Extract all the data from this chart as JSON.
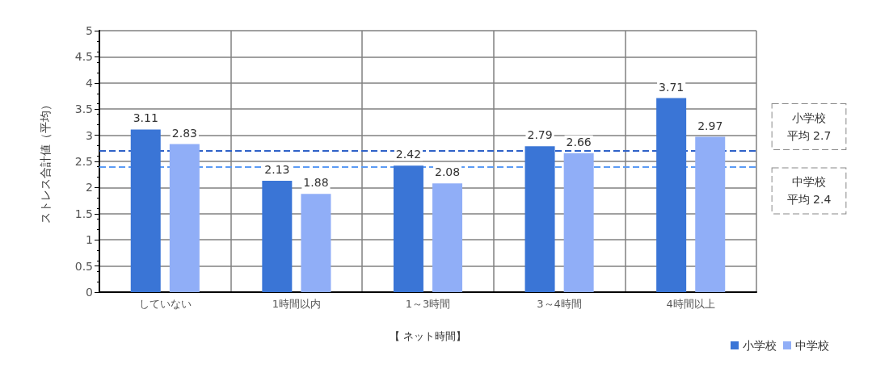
{
  "chart_data": {
    "type": "bar",
    "xlabel": "【 ネット時間】",
    "ylabel": "ストレス合計値（平均）",
    "categories": [
      "していない",
      "1時間以内",
      "1～3時間",
      "3～4時間",
      "4時間以上"
    ],
    "series": [
      {
        "name": "小学校",
        "color": "#3a75d6",
        "values": [
          3.11,
          2.13,
          2.42,
          2.79,
          3.71
        ]
      },
      {
        "name": "中学校",
        "color": "#90aef7",
        "values": [
          2.83,
          1.88,
          2.08,
          2.66,
          2.97
        ]
      }
    ],
    "ylim": [
      0,
      5
    ],
    "yticks": [
      0,
      0.5,
      1,
      1.5,
      2,
      2.5,
      3,
      3.5,
      4,
      4.5,
      5
    ],
    "ref_lines": [
      {
        "axis": "y",
        "value": 2.7,
        "label": [
          "小学校",
          "平均 2.7"
        ],
        "color": "#2f62c8",
        "line_style": "dashed"
      },
      {
        "axis": "y",
        "value": 2.4,
        "label": [
          "中学校",
          "平均 2.4"
        ],
        "color": "#5b9bf5",
        "line_style": "dashed"
      }
    ],
    "data_labels": true,
    "grid": true,
    "legend": "bottom right"
  }
}
